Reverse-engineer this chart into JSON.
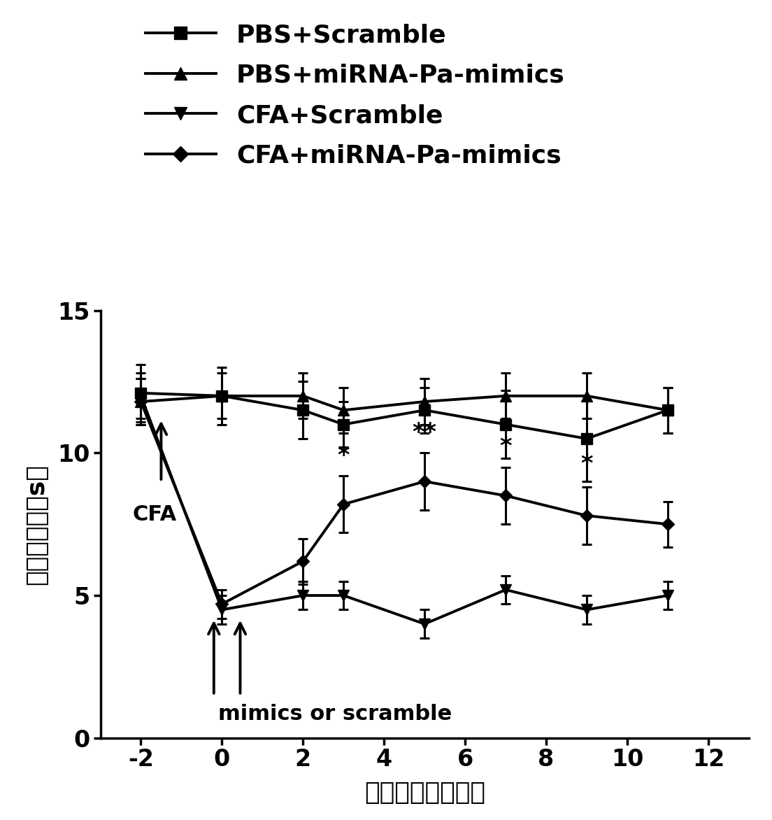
{
  "x_ticks": [
    -2,
    0,
    2,
    4,
    6,
    8,
    10,
    12
  ],
  "xlim": [
    -3,
    13
  ],
  "ylim": [
    0,
    15
  ],
  "y_ticks": [
    0,
    5,
    10,
    15
  ],
  "xlabel": "注射后时间（天）",
  "ylabel": "缩足潜伏期（s）",
  "series": [
    {
      "label": "PBS+Scramble",
      "x": [
        -2,
        0,
        2,
        3,
        5,
        7,
        9,
        11
      ],
      "y": [
        12.1,
        12.0,
        11.5,
        11.0,
        11.5,
        11.0,
        10.5,
        11.5
      ],
      "yerr": [
        1.0,
        1.0,
        1.0,
        0.8,
        0.8,
        1.2,
        1.5,
        0.8
      ],
      "marker": "s",
      "markersize": 11,
      "linewidth": 2.8,
      "color": "#000000"
    },
    {
      "label": "PBS+miRNA-Pa-mimics",
      "x": [
        -2,
        0,
        2,
        3,
        5,
        7,
        9,
        11
      ],
      "y": [
        11.8,
        12.0,
        12.0,
        11.5,
        11.8,
        12.0,
        12.0,
        11.5
      ],
      "yerr": [
        0.8,
        0.8,
        0.8,
        0.8,
        0.8,
        0.8,
        0.8,
        0.8
      ],
      "marker": "^",
      "markersize": 11,
      "linewidth": 2.8,
      "color": "#000000"
    },
    {
      "label": "CFA+Scramble",
      "x": [
        -2,
        0,
        2,
        3,
        5,
        7,
        9,
        11
      ],
      "y": [
        12.0,
        4.5,
        5.0,
        5.0,
        4.0,
        5.2,
        4.5,
        5.0
      ],
      "yerr": [
        0.8,
        0.5,
        0.5,
        0.5,
        0.5,
        0.5,
        0.5,
        0.5
      ],
      "marker": "v",
      "markersize": 11,
      "linewidth": 2.8,
      "color": "#000000"
    },
    {
      "label": "CFA+miRNA-Pa-mimics",
      "x": [
        -2,
        0,
        2,
        3,
        5,
        7,
        9,
        11
      ],
      "y": [
        11.8,
        4.7,
        6.2,
        8.2,
        9.0,
        8.5,
        7.8,
        7.5
      ],
      "yerr": [
        0.8,
        0.5,
        0.8,
        1.0,
        1.0,
        1.0,
        1.0,
        0.8
      ],
      "marker": "D",
      "markersize": 9,
      "linewidth": 2.8,
      "color": "#000000"
    }
  ],
  "background_color": "#ffffff",
  "figure_width": 11.04,
  "figure_height": 11.72
}
